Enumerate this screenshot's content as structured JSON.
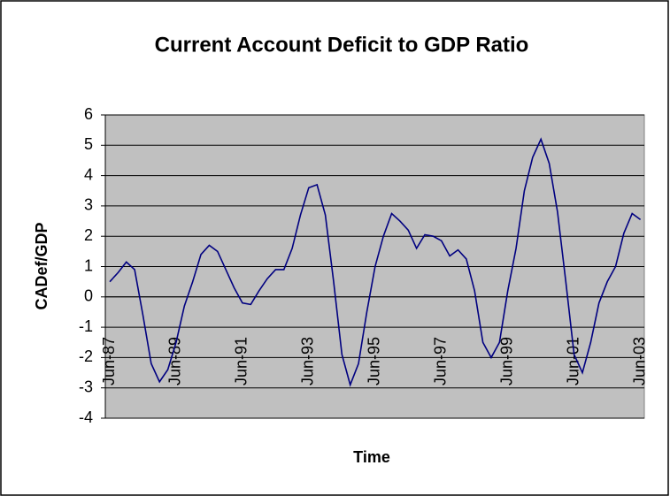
{
  "chart_data": {
    "type": "line",
    "title": "Current Account Deficit to GDP Ratio",
    "x_label": "Time",
    "y_label": "CADef/GDP",
    "categories": [
      "Jun-87",
      null,
      null,
      null,
      null,
      null,
      null,
      null,
      "Jun-89",
      null,
      null,
      null,
      null,
      null,
      null,
      null,
      "Jun-91",
      null,
      null,
      null,
      null,
      null,
      null,
      null,
      "Jun-93",
      null,
      null,
      null,
      null,
      null,
      null,
      null,
      "Jun-95",
      null,
      null,
      null,
      null,
      null,
      null,
      null,
      "Jun-97",
      null,
      null,
      null,
      null,
      null,
      null,
      null,
      "Jun-99",
      null,
      null,
      null,
      null,
      null,
      null,
      null,
      "Jun-01",
      null,
      null,
      null,
      null,
      null,
      null,
      null,
      "Jun-03"
    ],
    "series": [
      {
        "name": "CADef/GDP",
        "color": "#000080",
        "values": [
          0.5,
          0.8,
          1.15,
          0.9,
          -0.6,
          -2.2,
          -2.8,
          -2.4,
          -1.5,
          -0.3,
          0.5,
          1.4,
          1.7,
          1.5,
          0.9,
          0.3,
          -0.2,
          -0.25,
          0.2,
          0.6,
          0.9,
          0.9,
          1.6,
          2.7,
          3.6,
          3.7,
          2.7,
          0.5,
          -1.9,
          -2.9,
          -2.2,
          -0.5,
          1.0,
          2.0,
          2.75,
          2.5,
          2.2,
          1.6,
          2.05,
          2.0,
          1.85,
          1.35,
          1.55,
          1.25,
          0.2,
          -1.5,
          -2.0,
          -1.5,
          0.2,
          1.6,
          3.5,
          4.6,
          5.2,
          4.4,
          2.8,
          0.5,
          -1.9,
          -2.5,
          -1.5,
          -0.2,
          0.5,
          1.0,
          2.1,
          2.75,
          2.55
        ]
      }
    ],
    "ylim": [
      -4,
      6
    ],
    "yticks": [
      -4,
      -3,
      -2,
      -1,
      0,
      1,
      2,
      3,
      4,
      5,
      6
    ],
    "grid": true,
    "plot_background": "#c0c0c0"
  }
}
